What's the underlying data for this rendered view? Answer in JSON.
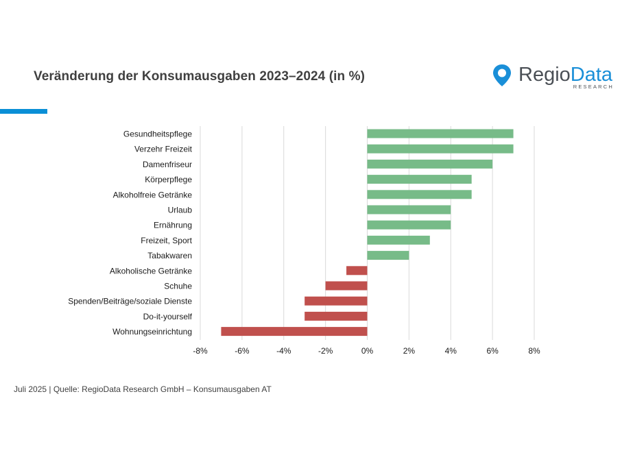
{
  "header": {
    "title": "Veränderung der Konsumausgaben 2023–2024 (in %)",
    "accent_color": "#0a8fd6"
  },
  "logo": {
    "word_part1": "Regio",
    "word_part2": "Data",
    "subtitle": "RESEARCH",
    "pin_color": "#1a8fd8",
    "text_color": "#4a4f55"
  },
  "chart_data": {
    "type": "bar",
    "orientation": "horizontal",
    "title": "Veränderung der Konsumausgaben 2023–2024 (in %)",
    "xlabel": "",
    "ylabel": "",
    "xlim": [
      -8,
      8
    ],
    "x_ticks": [
      -8,
      -6,
      -4,
      -2,
      0,
      2,
      4,
      6,
      8
    ],
    "x_tick_labels": [
      "-8%",
      "-6%",
      "-4%",
      "-2%",
      "0%",
      "2%",
      "4%",
      "6%",
      "8%"
    ],
    "grid": "vertical",
    "categories": [
      "Gesundheitspflege",
      "Verzehr Freizeit",
      "Damenfriseur",
      "Körperpflege",
      "Alkoholfreie Getränke",
      "Urlaub",
      "Ernährung",
      "Freizeit, Sport",
      "Tabakwaren",
      "Alkoholische Getränke",
      "Schuhe",
      "Spenden/Beiträge/soziale Dienste",
      "Do-it-yourself",
      "Wohnungseinrichtung"
    ],
    "values": [
      7,
      7,
      6,
      5,
      5,
      4,
      4,
      3,
      2,
      -1,
      -2,
      -3,
      -3,
      -7
    ],
    "colors": {
      "positive": "#77bb88",
      "negative": "#c0504d",
      "grid": "#d9d9d9"
    }
  },
  "footer": {
    "source": "Juli 2025 | Quelle: RegioData Research GmbH – Konsumausgaben AT"
  }
}
